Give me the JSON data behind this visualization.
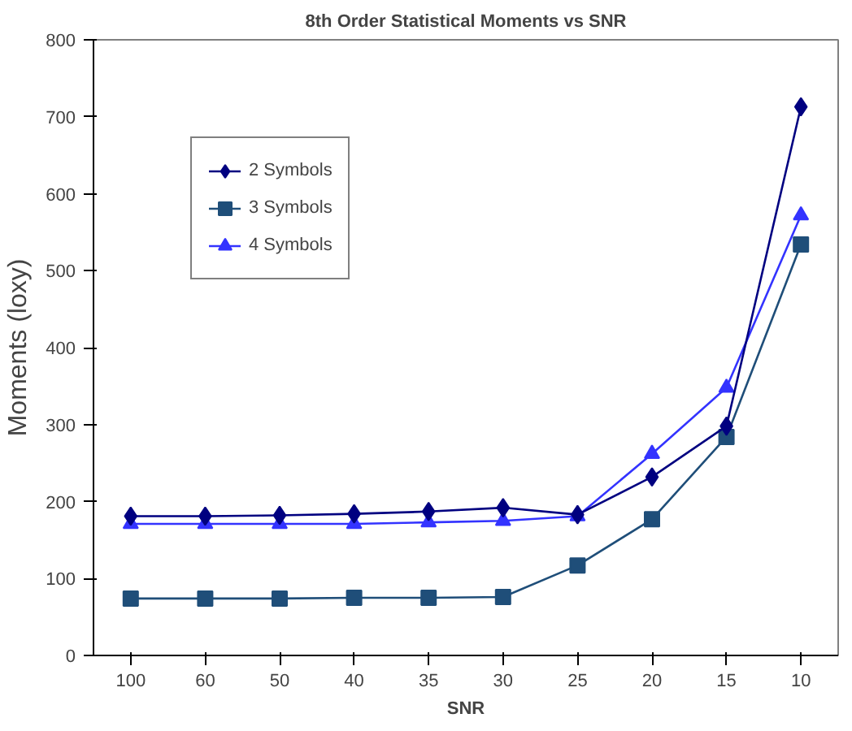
{
  "chart_data": {
    "type": "line",
    "title": "8th Order Statistical Moments vs SNR",
    "xlabel": "SNR",
    "ylabel": "Moments (loxy)",
    "categories": [
      "100",
      "60",
      "50",
      "40",
      "35",
      "30",
      "25",
      "20",
      "15",
      "10"
    ],
    "ylim": [
      0,
      800
    ],
    "yticks": [
      0,
      100,
      200,
      300,
      400,
      500,
      600,
      700,
      800
    ],
    "grid": false,
    "legend": "top left",
    "series": [
      {
        "name": "2 Symbols",
        "color": "#000080",
        "marker": "diamond",
        "values": [
          181,
          181,
          182,
          184,
          187,
          192,
          183,
          232,
          298,
          713
        ]
      },
      {
        "name": "3 Symbols",
        "color": "#1f4e79",
        "marker": "square",
        "values": [
          74,
          74,
          74,
          75,
          75,
          76,
          117,
          177,
          284,
          534
        ]
      },
      {
        "name": "4 Symbols",
        "color": "#3333ff",
        "marker": "triangle",
        "values": [
          171,
          171,
          171,
          171,
          173,
          175,
          181,
          262,
          348,
          572
        ]
      }
    ]
  }
}
